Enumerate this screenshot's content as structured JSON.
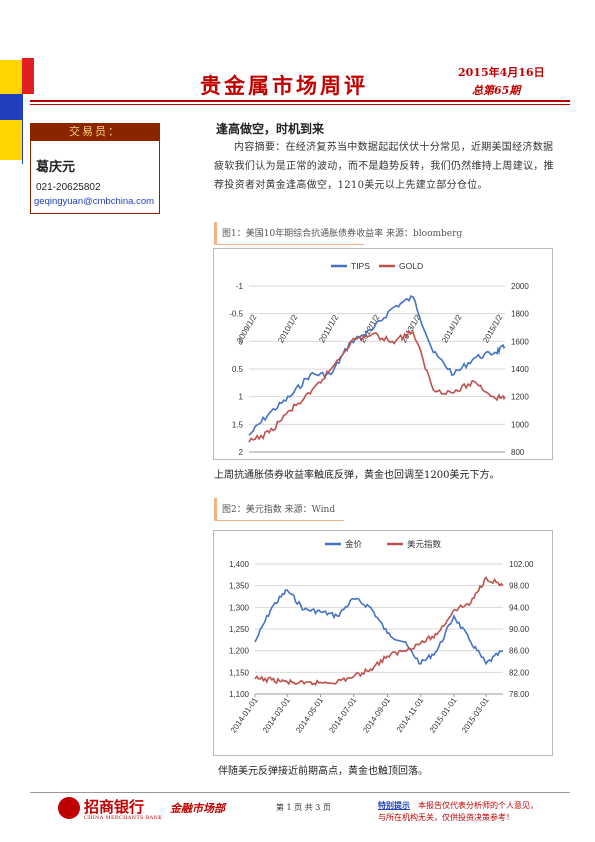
{
  "header": {
    "title": "贵金属市场周评",
    "date": "2015年4月16日",
    "issue": "总第65期"
  },
  "trader": {
    "label": "交易员：",
    "name": "葛庆元",
    "phone": "021-20625802",
    "email": "geqingyuan@cmbchina.com"
  },
  "article": {
    "headline": "逢高做空，时机到来",
    "body": "内容摘要：在经济复苏当中数据起起伏伏十分常见，近期美国经济数据疲软我们认为是正常的波动，而不是趋势反转，我们仍然维持上周建议，推荐投资者对黄金逢高做空，1210美元以上先建立部分仓位。"
  },
  "figures": [
    {
      "caption": "图1：美国10年期综合抗通胀债券收益率    来源：bloomberg",
      "note": "上周抗通胀债券收益率触底反弹，黄金也回调至1200美元下方。"
    },
    {
      "caption": "图2：美元指数   来源：Wind",
      "note": "伴随美元反弹接近前期高点，黄金也触顶回落。"
    }
  ],
  "chart_data": [
    {
      "type": "line",
      "series": [
        {
          "name": "TIPS",
          "color": "#4472c4",
          "axis": "left",
          "x": [
            "2009/1/2",
            "2009/7/1",
            "2010/1/2",
            "2010/7/1",
            "2011/1/2",
            "2011/7/1",
            "2012/1/2",
            "2012/7/1",
            "2013/1/2",
            "2013/7/1",
            "2014/1/2",
            "2014/7/1",
            "2015/1/2",
            "2015/4/1"
          ],
          "values": [
            1.7,
            1.3,
            1.0,
            0.6,
            0.6,
            0.0,
            -0.2,
            -0.6,
            -0.8,
            0.2,
            0.6,
            0.3,
            0.2,
            0.1
          ]
        },
        {
          "name": "GOLD",
          "color": "#c0504d",
          "axis": "right",
          "x": [
            "2009/1/2",
            "2009/7/1",
            "2010/1/2",
            "2010/7/1",
            "2011/1/2",
            "2011/7/1",
            "2012/1/2",
            "2012/7/1",
            "2013/1/2",
            "2013/7/1",
            "2014/1/2",
            "2014/7/1",
            "2015/1/2",
            "2015/4/1"
          ],
          "values": [
            870,
            940,
            1100,
            1220,
            1400,
            1600,
            1650,
            1600,
            1670,
            1250,
            1230,
            1310,
            1190,
            1200
          ]
        }
      ],
      "y_left": {
        "reversed": true,
        "range": [
          -1,
          2
        ],
        "ticks": [
          "-1",
          "-0.5",
          "0",
          "0.5",
          "1",
          "1.5",
          "2"
        ]
      },
      "y_right": {
        "range": [
          800,
          2000
        ],
        "ticks": [
          "2000",
          "1800",
          "1600",
          "1400",
          "1200",
          "1000",
          "800"
        ]
      },
      "x_ticks": [
        "2009/1/2",
        "2010/1/2",
        "2011/1/2",
        "2012/1/2",
        "2013/1/2",
        "2014/1/2",
        "2015/1/2"
      ],
      "grid": true,
      "legend": "top"
    },
    {
      "type": "line",
      "series": [
        {
          "name": "金价",
          "color": "#4472c4",
          "axis": "left",
          "x": [
            "2014-01-01",
            "2014-02-01",
            "2014-03-01",
            "2014-04-01",
            "2014-05-01",
            "2014-06-01",
            "2014-07-01",
            "2014-08-01",
            "2014-09-01",
            "2014-10-01",
            "2014-11-01",
            "2014-12-01",
            "2015-01-01",
            "2015-02-01",
            "2015-03-01",
            "2015-04-01"
          ],
          "values": [
            1220,
            1300,
            1340,
            1295,
            1290,
            1280,
            1320,
            1300,
            1240,
            1220,
            1170,
            1200,
            1280,
            1220,
            1170,
            1200
          ]
        },
        {
          "name": "美元指数",
          "color": "#c0504d",
          "axis": "right",
          "x": [
            "2014-01-01",
            "2014-02-01",
            "2014-03-01",
            "2014-04-01",
            "2014-05-01",
            "2014-06-01",
            "2014-07-01",
            "2014-08-01",
            "2014-09-01",
            "2014-10-01",
            "2014-11-01",
            "2014-12-01",
            "2015-01-01",
            "2015-02-01",
            "2015-03-01",
            "2015-04-01"
          ],
          "values": [
            80.8,
            80.6,
            80.2,
            79.9,
            80.1,
            80.3,
            81.2,
            82.6,
            85.0,
            86.0,
            87.4,
            89.0,
            93.5,
            94.8,
            99.5,
            98.0
          ]
        }
      ],
      "y_left": {
        "range": [
          1100,
          1400
        ],
        "ticks": [
          "1,400",
          "1,350",
          "1,300",
          "1,250",
          "1,200",
          "1,150",
          "1,100"
        ]
      },
      "y_right": {
        "range": [
          78,
          102
        ],
        "ticks": [
          "102.00",
          "98.00",
          "94.00",
          "90.00",
          "86.00",
          "82.00",
          "78.00"
        ]
      },
      "x_ticks": [
        "2014-01-01",
        "2014-03-01",
        "2014-05-01",
        "2014-07-01",
        "2014-09-01",
        "2014-11-01",
        "2015-01-01",
        "2015-03-01"
      ],
      "grid": true,
      "legend": "top"
    }
  ],
  "footer": {
    "bank": "招商银行",
    "bank_en": "CHINA MERCHANTS BANK",
    "dept": "金融市场部",
    "page": "第 1 页 共 3 页",
    "disclaimer_label": "特别提示",
    "disclaimer_1": "本报告仅代表分析师的个人意见，",
    "disclaimer_2": "与所在机构无关，仅供投资决策参考！"
  },
  "colors": {
    "brand": "#c00000",
    "accent_blue": "#1f3fbf",
    "accent_yellow": "#ffd400"
  }
}
